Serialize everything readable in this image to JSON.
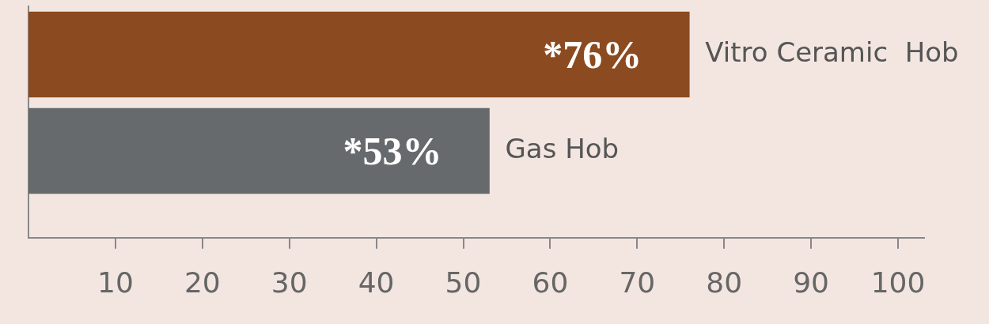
{
  "chart_data": {
    "type": "bar",
    "orientation": "horizontal",
    "categories": [
      "Vitro Ceramic  Hob",
      "Gas Hob"
    ],
    "values": [
      76,
      53
    ],
    "colors": [
      "#8b4a1f",
      "#666a6c"
    ],
    "value_labels": [
      "*76%",
      "*53%"
    ],
    "xlim": [
      0,
      103
    ],
    "xticks": [
      10,
      20,
      30,
      40,
      50,
      60,
      70,
      80,
      90,
      100
    ],
    "grid": false,
    "tick_labels": "x"
  }
}
